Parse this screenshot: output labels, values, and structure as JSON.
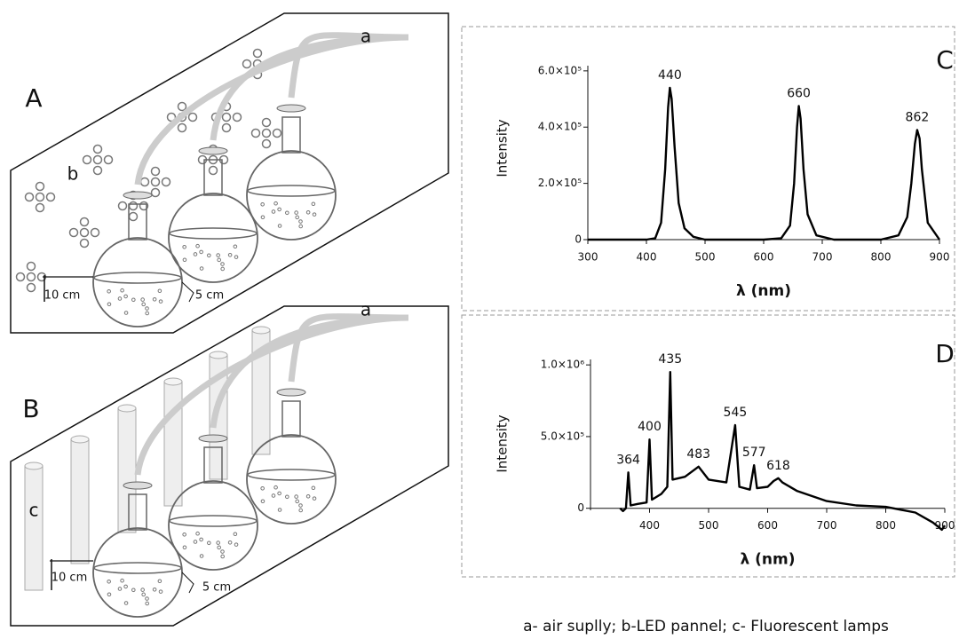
{
  "diagram": {
    "top": {
      "label": "A",
      "air": "a",
      "led": "b",
      "height": "10 cm",
      "width": "5 cm"
    },
    "bottom": {
      "label": "B",
      "air": "a",
      "lamp": "c",
      "height": "10 cm",
      "width": "5 cm"
    }
  },
  "caption": "a- air suplly;  b-LED pannel; c- Fluorescent lamps",
  "chart_data": [
    {
      "type": "line",
      "panel": "C",
      "x_label": "λ (nm)",
      "y_label": "Intensity",
      "color": "#000000",
      "x": [
        300,
        400,
        415,
        425,
        432,
        437,
        440,
        443,
        448,
        455,
        465,
        480,
        500,
        600,
        630,
        645,
        652,
        657,
        660,
        663,
        668,
        675,
        690,
        720,
        800,
        830,
        845,
        852,
        858,
        862,
        866,
        870,
        880,
        900
      ],
      "values": [
        0,
        0,
        5000,
        60000,
        250000,
        470000,
        540000,
        500000,
        330000,
        130000,
        40000,
        10000,
        0,
        0,
        5000,
        50000,
        200000,
        400000,
        475000,
        430000,
        250000,
        90000,
        15000,
        0,
        0,
        15000,
        80000,
        200000,
        340000,
        390000,
        360000,
        250000,
        60000,
        0
      ],
      "annotations": [
        {
          "x": 440,
          "y": 540000
        },
        {
          "x": 660,
          "y": 475000
        },
        {
          "x": 862,
          "y": 390000
        }
      ],
      "xlim": [
        300,
        900
      ],
      "xticks": [
        300,
        400,
        500,
        600,
        700,
        800,
        900
      ],
      "ylim": [
        0,
        650000
      ],
      "yticks": [
        0,
        {
          "value": 200000,
          "label": "2.0×10⁵"
        },
        {
          "value": 400000,
          "label": "4.0×10⁵"
        },
        {
          "value": 600000,
          "label": "6.0×10⁵"
        }
      ]
    },
    {
      "type": "line",
      "panel": "D",
      "x_label": "λ (nm)",
      "y_label": "Intensity",
      "color": "#000000",
      "x": [
        350,
        355,
        360,
        364,
        368,
        380,
        395,
        400,
        404,
        420,
        430,
        435,
        439,
        460,
        483,
        500,
        530,
        545,
        552,
        570,
        577,
        582,
        600,
        610,
        618,
        625,
        650,
        700,
        750,
        800,
        850,
        880,
        895,
        900
      ],
      "values": [
        0,
        -20000,
        0,
        250000,
        20000,
        30000,
        40000,
        480000,
        60000,
        100000,
        150000,
        950000,
        200000,
        220000,
        290000,
        200000,
        180000,
        580000,
        150000,
        130000,
        300000,
        140000,
        150000,
        190000,
        210000,
        180000,
        120000,
        50000,
        20000,
        10000,
        -30000,
        -100000,
        -150000,
        -120000
      ],
      "annotations": [
        {
          "x": 364,
          "y": 250000
        },
        {
          "x": 400,
          "y": 480000
        },
        {
          "x": 435,
          "y": 950000
        },
        {
          "x": 483,
          "y": 290000
        },
        {
          "x": 545,
          "y": 580000
        },
        {
          "x": 577,
          "y": 300000
        },
        {
          "x": 618,
          "y": 210000
        }
      ],
      "xlim": [
        300,
        900
      ],
      "xticks": [
        400,
        500,
        600,
        700,
        800,
        900
      ],
      "ylim": [
        -200000,
        1100000
      ],
      "yticks": [
        0,
        {
          "value": 500000,
          "label": "5.0×10⁵"
        },
        {
          "value": 1000000,
          "label": "1.0×10⁶"
        }
      ]
    }
  ]
}
